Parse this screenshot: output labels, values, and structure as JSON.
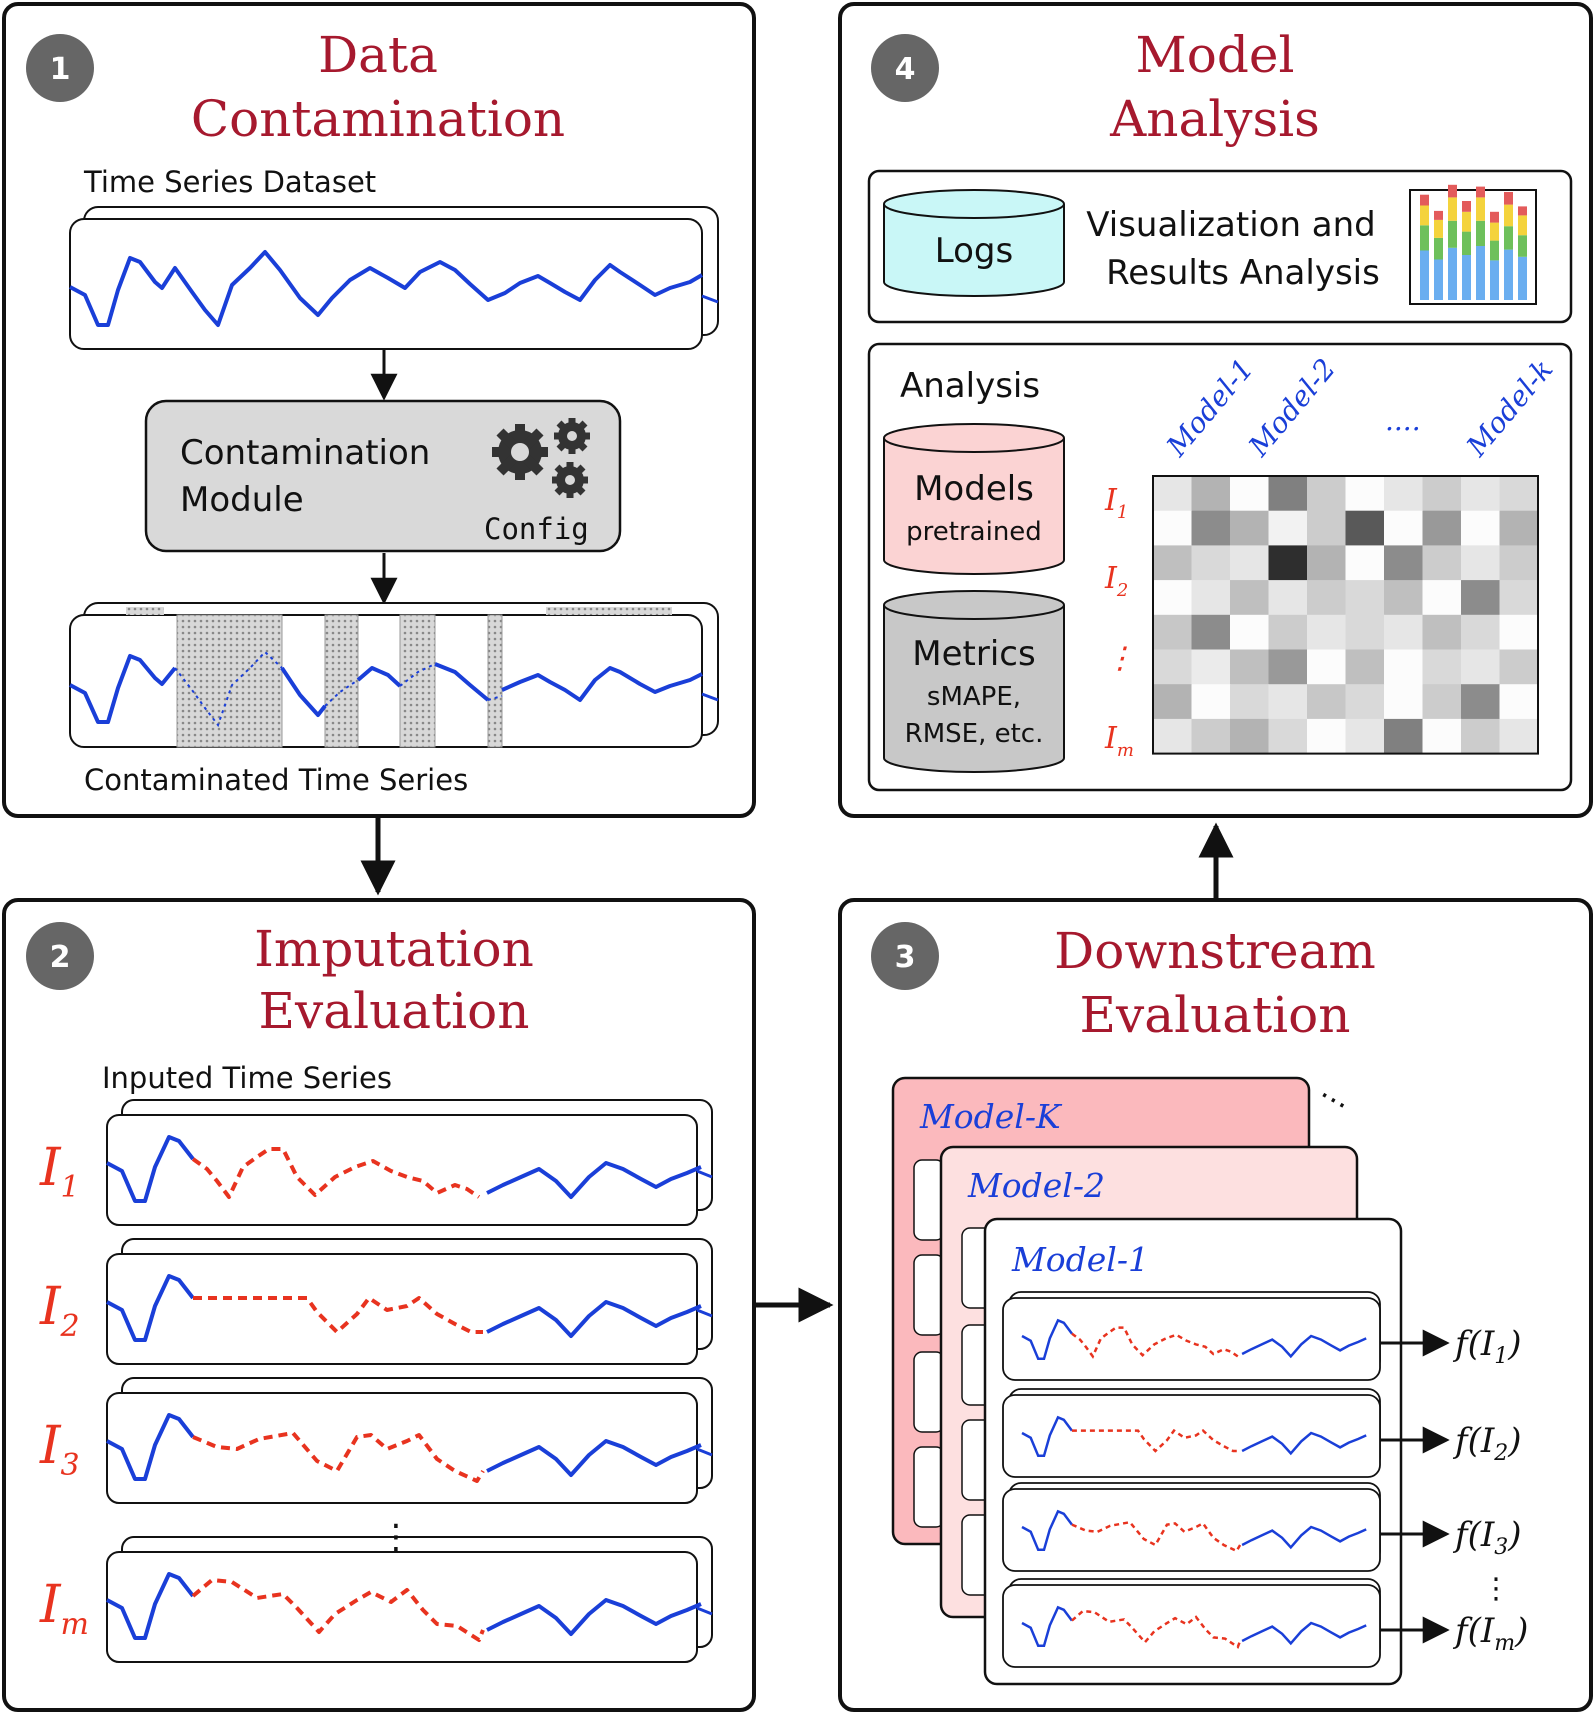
{
  "panels": {
    "p1": {
      "number": "1",
      "title_line1": "Data",
      "title_line2": "Contamination",
      "dataset_label": "Time Series Dataset",
      "module_line1": "Contamination",
      "module_line2": "Module",
      "config_label": "Config",
      "contaminated_label": "Contaminated Time Series"
    },
    "p2": {
      "number": "2",
      "title_line1": "Imputation",
      "title_line2": "Evaluation",
      "imputed_label": "Inputed Time Series",
      "rows": [
        {
          "label": "I",
          "sub": "1"
        },
        {
          "label": "I",
          "sub": "2"
        },
        {
          "label": "I",
          "sub": "3"
        },
        {
          "label": "I",
          "sub": "m"
        }
      ],
      "vdots": "⋮"
    },
    "p3": {
      "number": "3",
      "title_line1": "Downstream",
      "title_line2": "Evaluation",
      "model_k": "Model-K",
      "model_2": "Model-2",
      "model_1": "Model-1",
      "dots": "⋯",
      "outputs": [
        {
          "f": "f(I",
          "sub": "1",
          "close": ")"
        },
        {
          "f": "f(I",
          "sub": "2",
          "close": ")"
        },
        {
          "f": "f(I",
          "sub": "3",
          "close": ")"
        },
        {
          "f": "f(I",
          "sub": "m",
          "close": ")"
        }
      ],
      "vdots": "⋮"
    },
    "p4": {
      "number": "4",
      "title_line1": "Model",
      "title_line2": "Analysis",
      "logs_label": "Logs",
      "viz_line1": "Visualization and",
      "viz_line2": "Results Analysis",
      "analysis_label": "Analysis",
      "models_label": "Models",
      "models_sub": "pretrained",
      "metrics_label": "Metrics",
      "metrics_sub1": "sMAPE,",
      "metrics_sub2": "RMSE, etc.",
      "col_labels": [
        "Model-1",
        "Model-2",
        "....",
        "Model-k"
      ],
      "row_labels": [
        {
          "label": "I",
          "sub": "1"
        },
        {
          "label": "I",
          "sub": "2"
        },
        {
          "label": "⋮",
          "sub": ""
        },
        {
          "label": "I",
          "sub": "m"
        }
      ]
    }
  },
  "colors": {
    "title": "#a6192e",
    "series": "#1a3fd8",
    "imputed": "#e8331f",
    "logs": "#c9f7f7",
    "models": "#fbd3d3",
    "metrics": "#c8c8c8",
    "module": "#d9d9d9",
    "badge": "#666666"
  }
}
